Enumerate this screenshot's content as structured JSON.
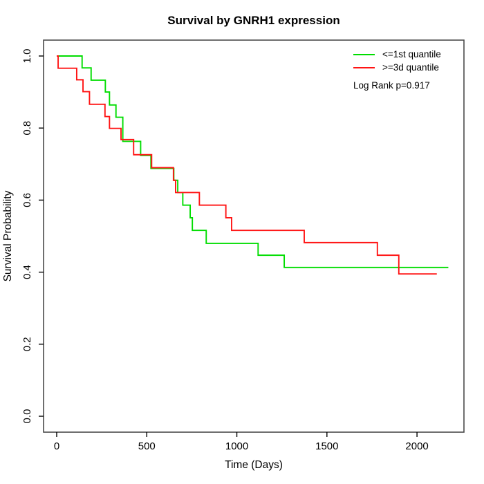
{
  "title": "Survival by GNRH1 expression",
  "xlabel": "Time (Days)",
  "ylabel": "Survival Probability",
  "legend": {
    "items": [
      {
        "label": "<=1st quantile",
        "color": "#00dd00"
      },
      {
        "label": ">=3d quantile",
        "color": "#ff1414"
      }
    ],
    "note": "Log Rank p=0.917"
  },
  "chart_data": {
    "type": "line",
    "subtype": "kaplan-meier-step",
    "title": "Survival by GNRH1 expression",
    "xlabel": "Time (Days)",
    "ylabel": "Survival Probability",
    "x_ticks": [
      0,
      500,
      1000,
      1500,
      2000
    ],
    "y_ticks": [
      0.0,
      0.2,
      0.4,
      0.6,
      0.8,
      1.0
    ],
    "xlim": [
      -73,
      2261
    ],
    "ylim": [
      -0.044,
      1.044
    ],
    "grid": false,
    "legend_position": "top-right",
    "annotation": "Log Rank p=0.917",
    "box_color": "#4a4a4a",
    "tick_color": "#000000",
    "series": [
      {
        "name": "<=1st quantile",
        "color": "#00dd00",
        "end_x": 2174,
        "steps": [
          [
            0,
            1.0
          ],
          [
            141,
            0.967
          ],
          [
            191,
            0.933
          ],
          [
            270,
            0.9
          ],
          [
            293,
            0.864
          ],
          [
            329,
            0.83
          ],
          [
            367,
            0.763
          ],
          [
            466,
            0.724
          ],
          [
            523,
            0.688
          ],
          [
            650,
            0.655
          ],
          [
            672,
            0.621
          ],
          [
            700,
            0.586
          ],
          [
            741,
            0.551
          ],
          [
            753,
            0.516
          ],
          [
            830,
            0.48
          ],
          [
            1118,
            0.447
          ],
          [
            1263,
            0.413
          ]
        ]
      },
      {
        "name": ">=3d quantile",
        "color": "#ff1414",
        "end_x": 2110,
        "steps": [
          [
            0,
            1.0
          ],
          [
            8,
            0.966
          ],
          [
            111,
            0.934
          ],
          [
            146,
            0.901
          ],
          [
            182,
            0.866
          ],
          [
            268,
            0.832
          ],
          [
            293,
            0.799
          ],
          [
            357,
            0.768
          ],
          [
            427,
            0.726
          ],
          [
            527,
            0.69
          ],
          [
            648,
            0.655
          ],
          [
            660,
            0.621
          ],
          [
            792,
            0.586
          ],
          [
            939,
            0.551
          ],
          [
            971,
            0.516
          ],
          [
            1374,
            0.482
          ],
          [
            1780,
            0.447
          ],
          [
            1899,
            0.395
          ]
        ]
      }
    ]
  }
}
